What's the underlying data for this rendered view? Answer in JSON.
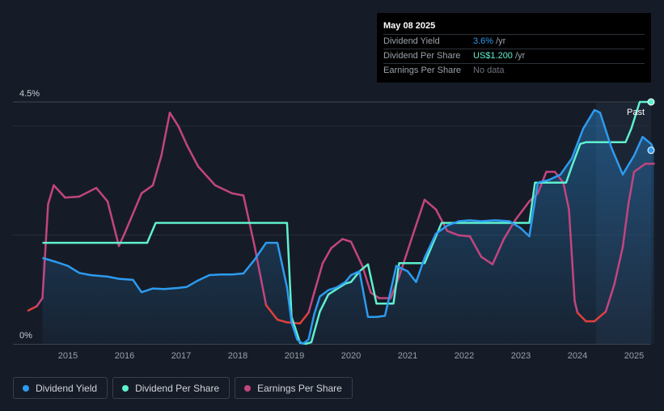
{
  "tooltip": {
    "date": "May 08 2025",
    "rows": [
      {
        "label": "Dividend Yield",
        "value": "3.6%",
        "unit": "/yr",
        "color": "#2d9bf0"
      },
      {
        "label": "Dividend Per Share",
        "value": "US$1.200",
        "unit": "/yr",
        "color": "#5ff0d0"
      },
      {
        "label": "Earnings Per Share",
        "value": "No data",
        "unit": "",
        "color": "#6c727d"
      }
    ]
  },
  "legend": [
    {
      "label": "Dividend Yield",
      "color": "#2d9bf0",
      "icon": "dividend-yield-dot-icon"
    },
    {
      "label": "Dividend Per Share",
      "color": "#5ff0d0",
      "icon": "dividend-per-share-dot-icon"
    },
    {
      "label": "Earnings Per Share",
      "color": "#c2457f",
      "icon": "earnings-per-share-dot-icon"
    }
  ],
  "chart_data": {
    "type": "line",
    "x_range": [
      2014.3,
      2025.4
    ],
    "ylim": [
      0,
      4.5
    ],
    "y_ticks": [
      {
        "value": 4.5,
        "label": "4.5%"
      },
      {
        "value": 0,
        "label": "0%"
      }
    ],
    "x_ticks": [
      "2015",
      "2016",
      "2017",
      "2018",
      "2019",
      "2020",
      "2021",
      "2022",
      "2023",
      "2024",
      "2025"
    ],
    "past_label": "Past",
    "past_start": 2024.33,
    "colors": {
      "yield": "#2d9bf0",
      "dps": "#5ff0d0",
      "eps": "#c2457f",
      "eps_negative": "#e0403c"
    },
    "series": [
      {
        "name": "Dividend Yield",
        "x": [
          2014.55,
          2014.8,
          2015.0,
          2015.2,
          2015.4,
          2015.7,
          2015.9,
          2016.15,
          2016.3,
          2016.5,
          2016.7,
          2016.95,
          2017.1,
          2017.3,
          2017.5,
          2017.7,
          2017.9,
          2018.1,
          2018.3,
          2018.5,
          2018.7,
          2018.87,
          2018.95,
          2019.05,
          2019.15,
          2019.25,
          2019.35,
          2019.45,
          2019.6,
          2019.75,
          2019.9,
          2020.0,
          2020.15,
          2020.3,
          2020.45,
          2020.6,
          2020.8,
          2021.0,
          2021.15,
          2021.3,
          2021.5,
          2021.7,
          2021.9,
          2022.1,
          2022.3,
          2022.55,
          2022.8,
          2023.0,
          2023.15,
          2023.3,
          2023.5,
          2023.7,
          2023.9,
          2024.1,
          2024.3,
          2024.4,
          2024.6,
          2024.8,
          2025.0,
          2025.15,
          2025.3,
          2025.35
        ],
        "values": [
          1.6,
          1.52,
          1.45,
          1.32,
          1.28,
          1.25,
          1.21,
          1.19,
          0.96,
          1.03,
          1.02,
          1.04,
          1.06,
          1.18,
          1.28,
          1.29,
          1.29,
          1.31,
          1.57,
          1.88,
          1.88,
          1.05,
          0.4,
          0.08,
          0.0,
          0.08,
          0.55,
          0.88,
          1.0,
          1.05,
          1.15,
          1.28,
          1.35,
          0.5,
          0.5,
          0.52,
          1.45,
          1.35,
          1.15,
          1.6,
          2.05,
          2.2,
          2.28,
          2.3,
          2.28,
          2.3,
          2.28,
          2.15,
          2.0,
          3.0,
          3.05,
          3.15,
          3.45,
          4.0,
          4.35,
          4.3,
          3.65,
          3.15,
          3.5,
          3.85,
          3.72,
          3.6
        ]
      },
      {
        "name": "Dividend Per Share",
        "x": [
          2014.55,
          2016.4,
          2016.55,
          2018.87,
          2018.95,
          2019.1,
          2019.2,
          2019.3,
          2019.45,
          2019.6,
          2019.75,
          2019.9,
          2020.0,
          2020.15,
          2020.3,
          2020.45,
          2020.6,
          2020.75,
          2020.85,
          2021.0,
          2021.3,
          2021.5,
          2021.6,
          2023.15,
          2023.25,
          2023.8,
          2023.9,
          2024.05,
          2024.15,
          2024.85,
          2024.95,
          2025.1,
          2025.2,
          2025.35
        ],
        "values": [
          1.88,
          1.88,
          2.25,
          2.25,
          0.5,
          0.02,
          0.0,
          0.03,
          0.6,
          0.92,
          1.02,
          1.12,
          1.15,
          1.35,
          1.48,
          0.75,
          0.75,
          0.75,
          1.5,
          1.5,
          1.5,
          2.0,
          2.25,
          2.25,
          3.0,
          3.0,
          3.3,
          3.72,
          3.75,
          3.75,
          4.0,
          4.5,
          4.5,
          4.5
        ]
      },
      {
        "name": "Earnings Per Share",
        "x": [
          2014.3,
          2014.45,
          2014.55,
          2014.65,
          2014.75,
          2014.95,
          2015.2,
          2015.5,
          2015.7,
          2015.9,
          2016.0,
          2016.3,
          2016.5,
          2016.65,
          2016.8,
          2016.95,
          2017.1,
          2017.3,
          2017.6,
          2017.9,
          2018.1,
          2018.3,
          2018.5,
          2018.7,
          2018.87,
          2019.1,
          2019.25,
          2019.35,
          2019.5,
          2019.65,
          2019.85,
          2020.0,
          2020.2,
          2020.35,
          2020.5,
          2020.7,
          2020.85,
          2021.1,
          2021.3,
          2021.5,
          2021.7,
          2021.9,
          2022.1,
          2022.3,
          2022.5,
          2022.7,
          2022.9,
          2023.15,
          2023.3,
          2023.45,
          2023.6,
          2023.75,
          2023.85,
          2023.95,
          2024.0,
          2024.15,
          2024.3,
          2024.5,
          2024.65,
          2024.8,
          2024.9,
          2025.0,
          2025.2,
          2025.35
        ],
        "values": [
          0.62,
          0.7,
          0.85,
          2.6,
          2.95,
          2.72,
          2.74,
          2.9,
          2.65,
          1.82,
          2.05,
          2.8,
          2.95,
          3.5,
          4.3,
          4.05,
          3.7,
          3.3,
          2.95,
          2.8,
          2.76,
          1.8,
          0.72,
          0.45,
          0.4,
          0.38,
          0.58,
          0.95,
          1.5,
          1.78,
          1.95,
          1.9,
          1.45,
          0.95,
          0.85,
          0.85,
          1.25,
          2.05,
          2.68,
          2.5,
          2.1,
          2.02,
          2.0,
          1.62,
          1.48,
          1.95,
          2.3,
          2.65,
          2.8,
          3.2,
          3.2,
          3.0,
          2.5,
          0.8,
          0.58,
          0.42,
          0.42,
          0.6,
          1.1,
          1.8,
          2.6,
          3.2,
          3.35,
          3.35
        ]
      }
    ]
  }
}
